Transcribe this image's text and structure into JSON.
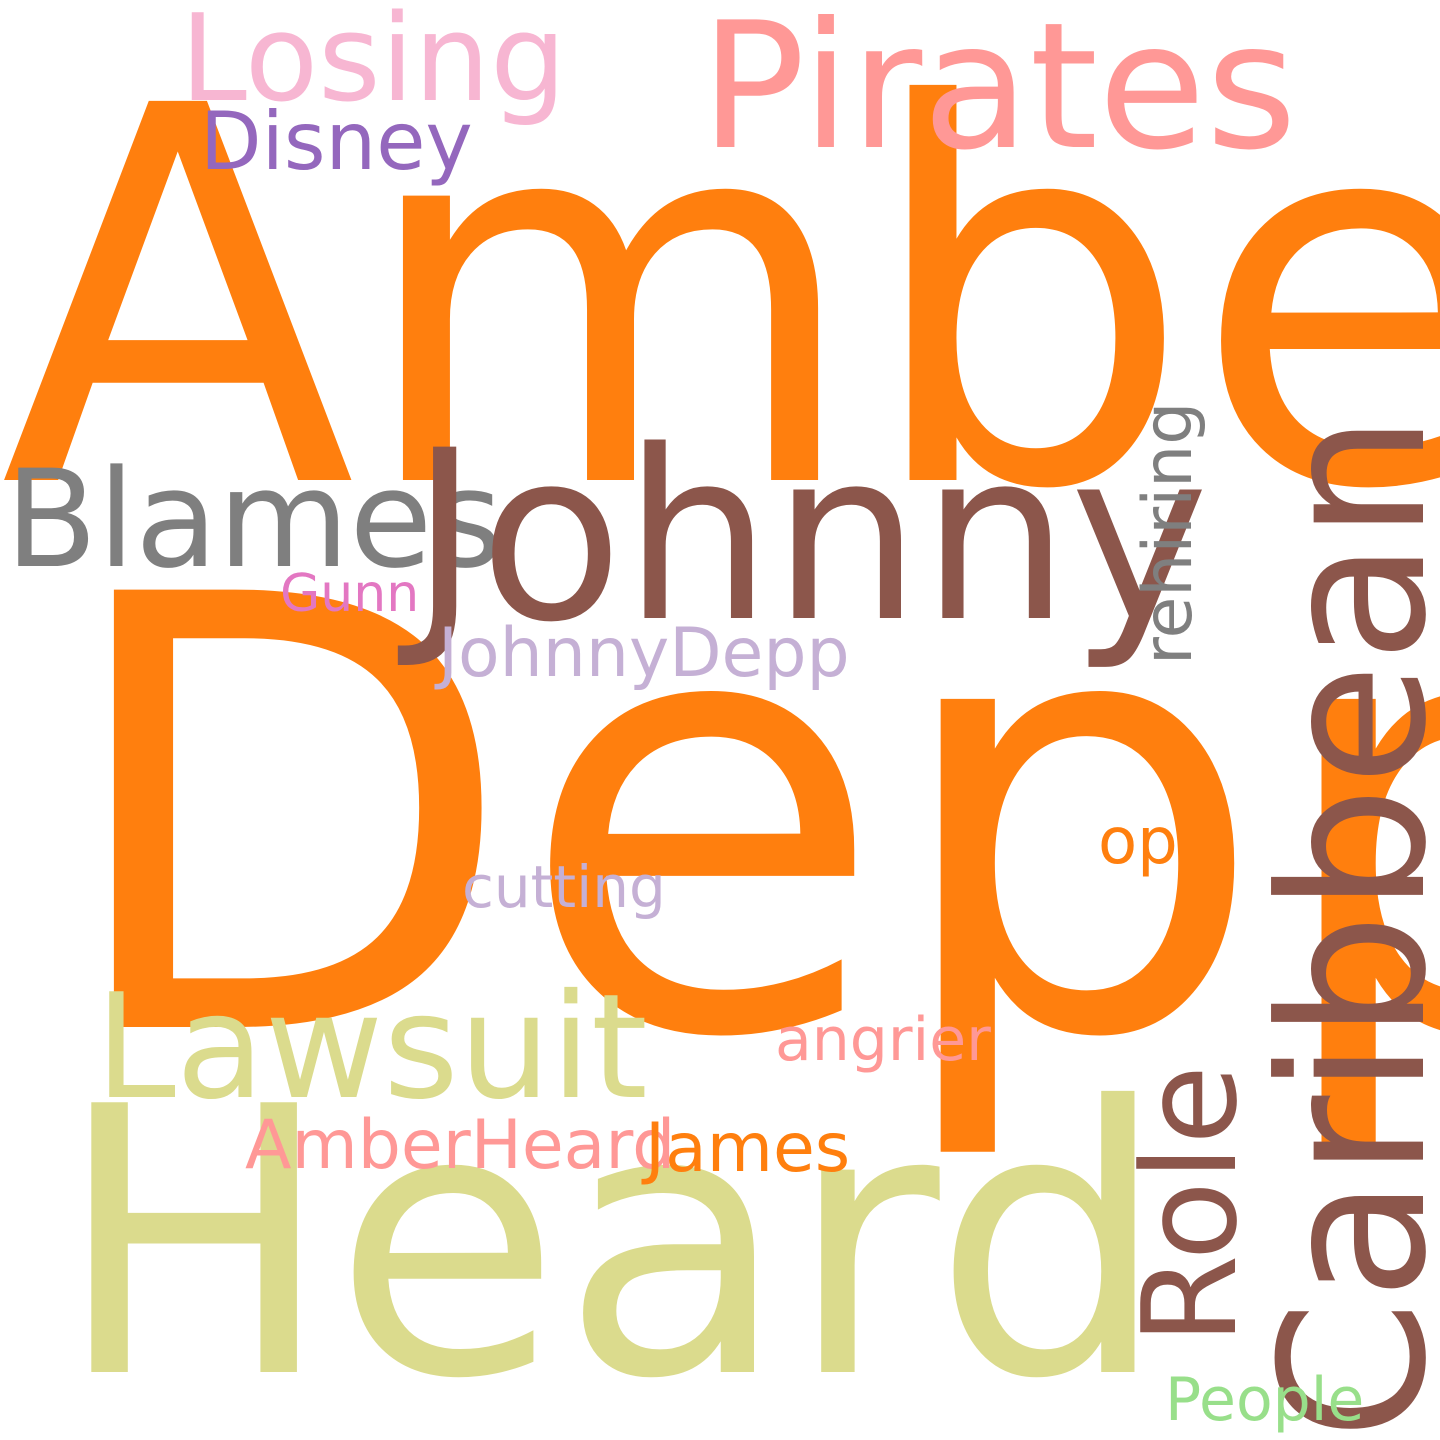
{
  "words": {
    "amber": {
      "text": "Amber",
      "color": "#ff7f0e"
    },
    "depp": {
      "text": "Depp",
      "color": "#ff7f0e"
    },
    "heard": {
      "text": "Heard",
      "color": "#dbdb8d"
    },
    "pirates": {
      "text": "Pirates",
      "color": "#ff9896"
    },
    "losing": {
      "text": "Losing",
      "color": "#f7b6d2"
    },
    "disney": {
      "text": "Disney",
      "color": "#9467bd"
    },
    "blames": {
      "text": "Blames",
      "color": "#7f7f7f"
    },
    "johnny": {
      "text": "Johnny",
      "color": "#8c564b"
    },
    "caribbean": {
      "text": "Caribbean",
      "color": "#8c564b"
    },
    "rehiring": {
      "text": "rehiring",
      "color": "#7f7f7f"
    },
    "gunn": {
      "text": "Gunn",
      "color": "#e377c2"
    },
    "johnnydepp": {
      "text": "JohnnyDepp",
      "color": "#c5b0d5"
    },
    "cutting": {
      "text": "cutting",
      "color": "#c5b0d5"
    },
    "op": {
      "text": "op",
      "color": "#ff7f0e"
    },
    "lawsuit": {
      "text": "Lawsuit",
      "color": "#dbdb8d"
    },
    "angrier": {
      "text": "angrier",
      "color": "#ff9896"
    },
    "role": {
      "text": "Role",
      "color": "#8c564b"
    },
    "amberheard": {
      "text": "AmberHeard",
      "color": "#ff9896"
    },
    "james": {
      "text": "James",
      "color": "#ff7f0e"
    },
    "people": {
      "text": "People",
      "color": "#98df8a"
    }
  }
}
